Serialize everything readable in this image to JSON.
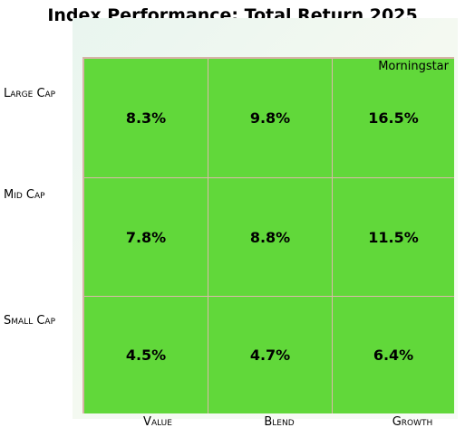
{
  "chart_data": {
    "type": "table",
    "title": "Index Performance: Total Return 2025",
    "source_label": "Morningstar",
    "rows": [
      "Large Cap",
      "Mid Cap",
      "Small Cap"
    ],
    "columns": [
      "Value",
      "Blend",
      "Growth"
    ],
    "cells": [
      [
        "8.3%",
        "9.8%",
        "16.5%"
      ],
      [
        "7.8%",
        "8.8%",
        "11.5%"
      ],
      [
        "4.5%",
        "4.7%",
        "6.4%"
      ]
    ],
    "values": [
      [
        8.3,
        9.8,
        16.5
      ],
      [
        7.8,
        8.8,
        11.5
      ],
      [
        4.5,
        4.7,
        6.4
      ]
    ],
    "cell_color": "#61d83a",
    "border_color": "#dcb9ab"
  }
}
